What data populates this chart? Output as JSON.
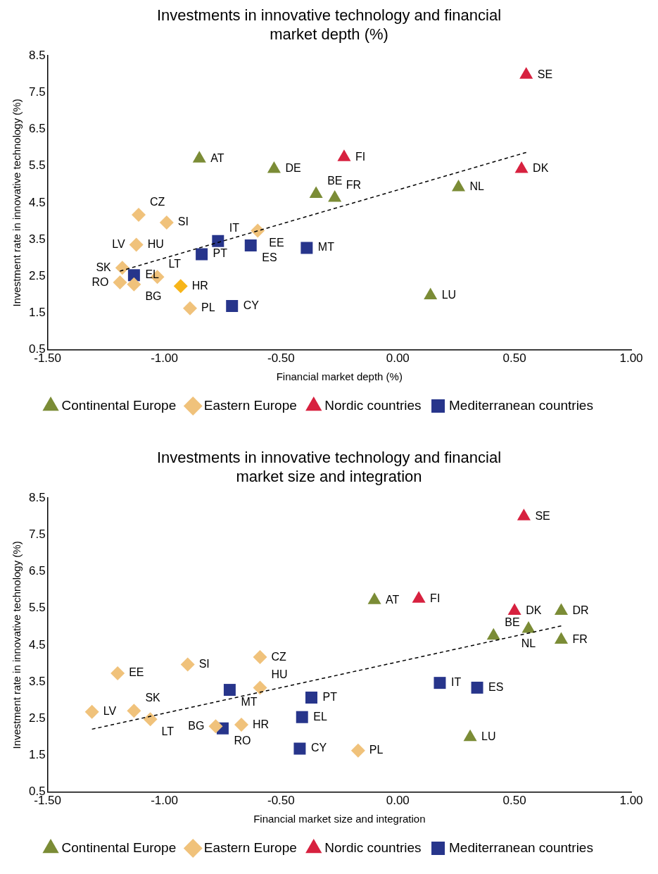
{
  "chart_data": [
    {
      "type": "scatter",
      "title": "Investments in innovative technology and financial market depth (%)",
      "xlabel": "Financial market depth (%)",
      "ylabel": "Investment rate in innovative technology (%)",
      "xlim": [
        -1.5,
        1.0
      ],
      "ylim": [
        0.5,
        8.5
      ],
      "xticks": [
        {
          "value": -1.5,
          "label": "-1.50"
        },
        {
          "value": -1.0,
          "label": "-1.00"
        },
        {
          "value": -0.5,
          "label": "-0.50"
        },
        {
          "value": 0,
          "label": "0.00"
        },
        {
          "value": 0.5,
          "label": "0.50"
        },
        {
          "value": 1.0,
          "label": "1.00"
        }
      ],
      "yticks": [
        0.5,
        1.5,
        2.5,
        3.5,
        4.5,
        5.5,
        6.5,
        7.5,
        8.5
      ],
      "grid": false,
      "legend": "bottom",
      "series": [
        {
          "name": "Continental Europe",
          "color": "#7b8c36",
          "marker": "triangle",
          "x": [
            -0.85,
            -0.53,
            -0.35,
            -0.27,
            0.26,
            0.14
          ],
          "values": [
            5.7,
            5.42,
            4.74,
            4.63,
            4.92,
            1.98
          ]
        },
        {
          "name": "Eastern Europe",
          "color": "#f0c27b",
          "marker": "diamond",
          "x": [
            -1.11,
            -0.99,
            -1.12,
            -0.6,
            -1.18,
            -1.03,
            -0.93,
            -1.19,
            -1.13,
            -0.89
          ],
          "values": [
            4.17,
            3.96,
            3.36,
            3.74,
            2.73,
            2.48,
            2.23,
            2.33,
            2.28,
            1.63
          ],
          "colors": [
            "#f0c27b",
            "#f0c27b",
            "#f0c27b",
            "#f0c27b",
            "#f0c27b",
            "#f0c27b",
            "#f7b519",
            "#f0c27b",
            "#f0c27b",
            "#f0c27b"
          ]
        },
        {
          "name": "Nordic countries",
          "color": "#d7213f",
          "marker": "triangle",
          "x": [
            0.55,
            -0.23,
            0.53
          ],
          "values": [
            7.98,
            5.74,
            5.42
          ]
        },
        {
          "name": "Mediterranean countries",
          "color": "#27358b",
          "marker": "square",
          "x": [
            -0.77,
            -0.84,
            -0.63,
            -0.39,
            -0.71,
            -1.13
          ],
          "values": [
            3.46,
            3.1,
            3.34,
            3.27,
            1.69,
            2.53
          ]
        },
        {
          "type": "line",
          "color": "#000000",
          "line_style": "dashed",
          "marker": "none",
          "x": [
            -1.19,
            0.55
          ],
          "values": [
            2.64,
            5.87
          ]
        }
      ],
      "annotations": [
        {
          "text": "AT",
          "x": -0.85,
          "y": 5.7
        },
        {
          "text": "DE",
          "x": -0.53,
          "y": 5.42
        },
        {
          "text": "BE",
          "x": -0.35,
          "y": 4.74
        },
        {
          "text": "FR",
          "x": -0.27,
          "y": 4.63
        },
        {
          "text": "NL",
          "x": 0.26,
          "y": 4.92
        },
        {
          "text": "LU",
          "x": 0.14,
          "y": 1.98
        },
        {
          "text": "CZ",
          "x": -1.11,
          "y": 4.17
        },
        {
          "text": "SI",
          "x": -0.99,
          "y": 3.96
        },
        {
          "text": "HU",
          "x": -1.12,
          "y": 3.36
        },
        {
          "text": "EE",
          "x": -0.6,
          "y": 3.74
        },
        {
          "text": "SK",
          "x": -1.18,
          "y": 2.73
        },
        {
          "text": "LV",
          "x": -1.12,
          "y": 3.36
        },
        {
          "text": "LT",
          "x": -1.03,
          "y": 2.48
        },
        {
          "text": "HR",
          "x": -0.93,
          "y": 2.23
        },
        {
          "text": "RO",
          "x": -1.19,
          "y": 2.33
        },
        {
          "text": "BG",
          "x": -1.13,
          "y": 2.28
        },
        {
          "text": "PL",
          "x": -0.89,
          "y": 1.63
        },
        {
          "text": "SE",
          "x": 0.55,
          "y": 7.98
        },
        {
          "text": "FI",
          "x": -0.23,
          "y": 5.74
        },
        {
          "text": "DK",
          "x": 0.53,
          "y": 5.42
        },
        {
          "text": "IT",
          "x": -0.77,
          "y": 3.46
        },
        {
          "text": "PT",
          "x": -0.84,
          "y": 3.1
        },
        {
          "text": "ES",
          "x": -0.63,
          "y": 3.34
        },
        {
          "text": "MT",
          "x": -0.39,
          "y": 3.27
        },
        {
          "text": "CY",
          "x": -0.71,
          "y": 1.69
        },
        {
          "text": "EL",
          "x": -1.13,
          "y": 2.53
        }
      ]
    },
    {
      "type": "scatter",
      "title": "Investments in innovative technology and financial market size and integration",
      "xlabel": "Financial market size and integration",
      "ylabel": "Investment rate in innovative technology (%)",
      "xlim": [
        -1.5,
        1.0
      ],
      "ylim": [
        0.5,
        8.5
      ],
      "xticks": [
        {
          "value": -1.5,
          "label": "-1.50"
        },
        {
          "value": -1.0,
          "label": "-1.00"
        },
        {
          "value": -0.5,
          "label": "-0.50"
        },
        {
          "value": 0,
          "label": "0.00"
        },
        {
          "value": 0.5,
          "label": "0.50"
        },
        {
          "value": 1.0,
          "label": "1.00"
        }
      ],
      "yticks": [
        0.5,
        1.5,
        2.5,
        3.5,
        4.5,
        5.5,
        6.5,
        7.5,
        8.5
      ],
      "grid": false,
      "legend": "bottom",
      "series": [
        {
          "name": "Continental Europe",
          "color": "#7b8c36",
          "marker": "triangle",
          "x": [
            -0.1,
            0.7,
            0.41,
            0.56,
            0.7,
            0.31
          ],
          "values": [
            5.72,
            5.43,
            4.75,
            4.94,
            4.64,
            1.99
          ]
        },
        {
          "name": "Eastern Europe",
          "color": "#f0c27b",
          "marker": "diamond",
          "x": [
            -1.2,
            -0.9,
            -0.59,
            -0.59,
            -1.31,
            -1.13,
            -1.06,
            -0.78,
            -0.67,
            -0.17
          ],
          "values": [
            3.73,
            3.97,
            4.17,
            3.34,
            2.68,
            2.71,
            2.48,
            2.29,
            2.33,
            1.63
          ]
        },
        {
          "name": "Nordic countries",
          "color": "#d7213f",
          "marker": "triangle",
          "x": [
            0.54,
            0.09,
            0.5
          ],
          "values": [
            8.0,
            5.76,
            5.43
          ]
        },
        {
          "name": "Mediterranean countries",
          "color": "#27358b",
          "marker": "square",
          "x": [
            0.18,
            0.34,
            -0.37,
            -0.41,
            -0.42,
            -0.72,
            -0.75
          ],
          "values": [
            3.47,
            3.34,
            3.07,
            2.54,
            1.68,
            3.28,
            2.23
          ]
        },
        {
          "type": "line",
          "color": "#000000",
          "line_style": "dashed",
          "marker": "none",
          "x": [
            -1.31,
            0.7
          ],
          "values": [
            2.21,
            5.02
          ]
        }
      ],
      "annotations": [
        {
          "text": "AT",
          "x": -0.1,
          "y": 5.72
        },
        {
          "text": "DR",
          "x": 0.7,
          "y": 5.43
        },
        {
          "text": "BE",
          "x": 0.41,
          "y": 4.75
        },
        {
          "text": "NL",
          "x": 0.56,
          "y": 4.94
        },
        {
          "text": "FR",
          "x": 0.7,
          "y": 4.64
        },
        {
          "text": "LU",
          "x": 0.31,
          "y": 1.99
        },
        {
          "text": "EE",
          "x": -1.2,
          "y": 3.73
        },
        {
          "text": "SI",
          "x": -0.9,
          "y": 3.97
        },
        {
          "text": "CZ",
          "x": -0.59,
          "y": 4.17
        },
        {
          "text": "HU",
          "x": -0.59,
          "y": 3.34
        },
        {
          "text": "LV",
          "x": -1.31,
          "y": 2.68
        },
        {
          "text": "SK",
          "x": -1.13,
          "y": 2.71
        },
        {
          "text": "LT",
          "x": -1.06,
          "y": 2.48
        },
        {
          "text": "BG",
          "x": -0.78,
          "y": 2.29
        },
        {
          "text": "HR",
          "x": -0.67,
          "y": 2.33
        },
        {
          "text": "PL",
          "x": -0.17,
          "y": 1.63
        },
        {
          "text": "SE",
          "x": 0.54,
          "y": 8.0
        },
        {
          "text": "FI",
          "x": 0.09,
          "y": 5.76
        },
        {
          "text": "DK",
          "x": 0.5,
          "y": 5.43
        },
        {
          "text": "IT",
          "x": 0.18,
          "y": 3.47
        },
        {
          "text": "ES",
          "x": 0.34,
          "y": 3.34
        },
        {
          "text": "PT",
          "x": -0.37,
          "y": 3.07
        },
        {
          "text": "EL",
          "x": -0.41,
          "y": 2.54
        },
        {
          "text": "CY",
          "x": -0.42,
          "y": 1.68
        },
        {
          "text": "MT",
          "x": -0.72,
          "y": 3.28
        },
        {
          "text": "RO",
          "x": -0.75,
          "y": 2.23
        }
      ]
    }
  ]
}
